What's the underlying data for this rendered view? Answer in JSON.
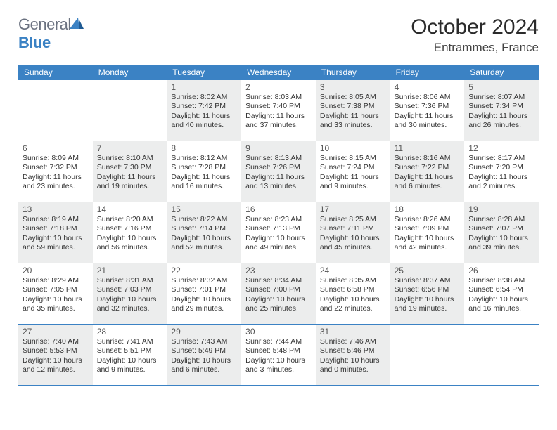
{
  "brand": {
    "word1": "General",
    "word2": "Blue"
  },
  "title": "October 2024",
  "location": "Entrammes, France",
  "headers": [
    "Sunday",
    "Monday",
    "Tuesday",
    "Wednesday",
    "Thursday",
    "Friday",
    "Saturday"
  ],
  "colors": {
    "header_bg": "#3b82c4",
    "shade_bg": "#eceded",
    "border": "#3b82c4"
  },
  "weeks": [
    [
      {
        "n": "",
        "shade": false
      },
      {
        "n": "",
        "shade": false
      },
      {
        "n": "1",
        "shade": true,
        "sr": "8:02 AM",
        "ss": "7:42 PM",
        "dl": "11 hours and 40 minutes."
      },
      {
        "n": "2",
        "shade": false,
        "sr": "8:03 AM",
        "ss": "7:40 PM",
        "dl": "11 hours and 37 minutes."
      },
      {
        "n": "3",
        "shade": true,
        "sr": "8:05 AM",
        "ss": "7:38 PM",
        "dl": "11 hours and 33 minutes."
      },
      {
        "n": "4",
        "shade": false,
        "sr": "8:06 AM",
        "ss": "7:36 PM",
        "dl": "11 hours and 30 minutes."
      },
      {
        "n": "5",
        "shade": true,
        "sr": "8:07 AM",
        "ss": "7:34 PM",
        "dl": "11 hours and 26 minutes."
      }
    ],
    [
      {
        "n": "6",
        "shade": false,
        "sr": "8:09 AM",
        "ss": "7:32 PM",
        "dl": "11 hours and 23 minutes."
      },
      {
        "n": "7",
        "shade": true,
        "sr": "8:10 AM",
        "ss": "7:30 PM",
        "dl": "11 hours and 19 minutes."
      },
      {
        "n": "8",
        "shade": false,
        "sr": "8:12 AM",
        "ss": "7:28 PM",
        "dl": "11 hours and 16 minutes."
      },
      {
        "n": "9",
        "shade": true,
        "sr": "8:13 AM",
        "ss": "7:26 PM",
        "dl": "11 hours and 13 minutes."
      },
      {
        "n": "10",
        "shade": false,
        "sr": "8:15 AM",
        "ss": "7:24 PM",
        "dl": "11 hours and 9 minutes."
      },
      {
        "n": "11",
        "shade": true,
        "sr": "8:16 AM",
        "ss": "7:22 PM",
        "dl": "11 hours and 6 minutes."
      },
      {
        "n": "12",
        "shade": false,
        "sr": "8:17 AM",
        "ss": "7:20 PM",
        "dl": "11 hours and 2 minutes."
      }
    ],
    [
      {
        "n": "13",
        "shade": true,
        "sr": "8:19 AM",
        "ss": "7:18 PM",
        "dl": "10 hours and 59 minutes."
      },
      {
        "n": "14",
        "shade": false,
        "sr": "8:20 AM",
        "ss": "7:16 PM",
        "dl": "10 hours and 56 minutes."
      },
      {
        "n": "15",
        "shade": true,
        "sr": "8:22 AM",
        "ss": "7:14 PM",
        "dl": "10 hours and 52 minutes."
      },
      {
        "n": "16",
        "shade": false,
        "sr": "8:23 AM",
        "ss": "7:13 PM",
        "dl": "10 hours and 49 minutes."
      },
      {
        "n": "17",
        "shade": true,
        "sr": "8:25 AM",
        "ss": "7:11 PM",
        "dl": "10 hours and 45 minutes."
      },
      {
        "n": "18",
        "shade": false,
        "sr": "8:26 AM",
        "ss": "7:09 PM",
        "dl": "10 hours and 42 minutes."
      },
      {
        "n": "19",
        "shade": true,
        "sr": "8:28 AM",
        "ss": "7:07 PM",
        "dl": "10 hours and 39 minutes."
      }
    ],
    [
      {
        "n": "20",
        "shade": false,
        "sr": "8:29 AM",
        "ss": "7:05 PM",
        "dl": "10 hours and 35 minutes."
      },
      {
        "n": "21",
        "shade": true,
        "sr": "8:31 AM",
        "ss": "7:03 PM",
        "dl": "10 hours and 32 minutes."
      },
      {
        "n": "22",
        "shade": false,
        "sr": "8:32 AM",
        "ss": "7:01 PM",
        "dl": "10 hours and 29 minutes."
      },
      {
        "n": "23",
        "shade": true,
        "sr": "8:34 AM",
        "ss": "7:00 PM",
        "dl": "10 hours and 25 minutes."
      },
      {
        "n": "24",
        "shade": false,
        "sr": "8:35 AM",
        "ss": "6:58 PM",
        "dl": "10 hours and 22 minutes."
      },
      {
        "n": "25",
        "shade": true,
        "sr": "8:37 AM",
        "ss": "6:56 PM",
        "dl": "10 hours and 19 minutes."
      },
      {
        "n": "26",
        "shade": false,
        "sr": "8:38 AM",
        "ss": "6:54 PM",
        "dl": "10 hours and 16 minutes."
      }
    ],
    [
      {
        "n": "27",
        "shade": true,
        "sr": "7:40 AM",
        "ss": "5:53 PM",
        "dl": "10 hours and 12 minutes."
      },
      {
        "n": "28",
        "shade": false,
        "sr": "7:41 AM",
        "ss": "5:51 PM",
        "dl": "10 hours and 9 minutes."
      },
      {
        "n": "29",
        "shade": true,
        "sr": "7:43 AM",
        "ss": "5:49 PM",
        "dl": "10 hours and 6 minutes."
      },
      {
        "n": "30",
        "shade": false,
        "sr": "7:44 AM",
        "ss": "5:48 PM",
        "dl": "10 hours and 3 minutes."
      },
      {
        "n": "31",
        "shade": true,
        "sr": "7:46 AM",
        "ss": "5:46 PM",
        "dl": "10 hours and 0 minutes."
      },
      {
        "n": "",
        "shade": false
      },
      {
        "n": "",
        "shade": false
      }
    ]
  ],
  "labels": {
    "sunrise": "Sunrise: ",
    "sunset": "Sunset: ",
    "daylight": "Daylight: "
  }
}
